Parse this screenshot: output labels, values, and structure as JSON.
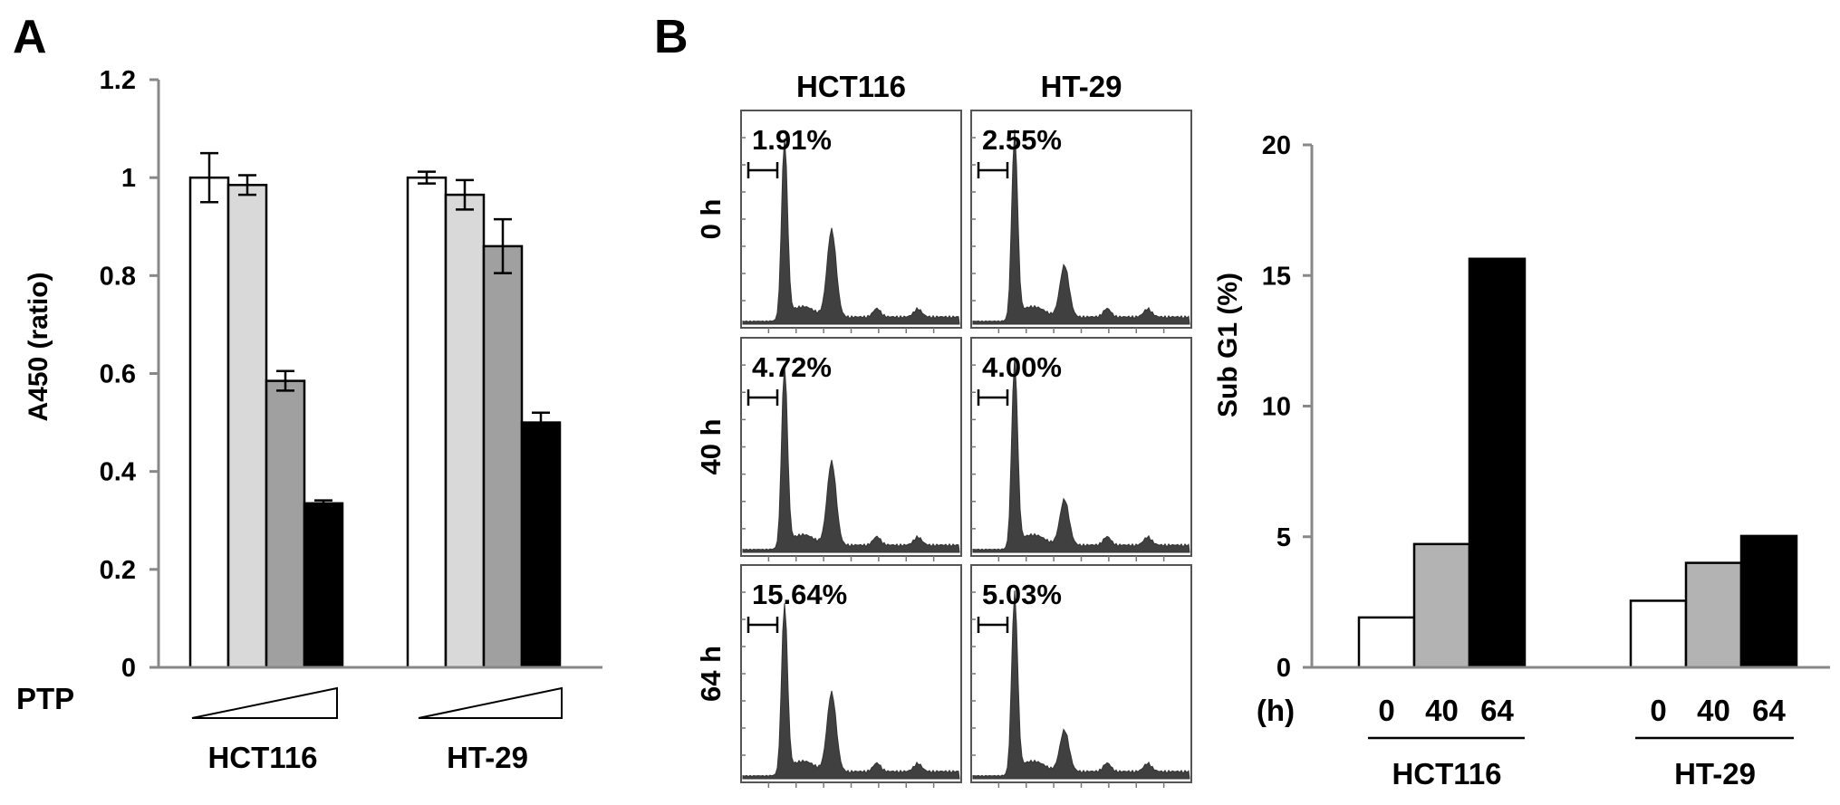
{
  "panel_a": {
    "letter": "A",
    "treatment_label": "PTP",
    "colors": [
      "#ffffff",
      "#d9d9d9",
      "#a0a0a0",
      "#000000"
    ]
  },
  "panel_b": {
    "letter": "B",
    "histogram_columns": [
      "HCT116",
      "HT-29"
    ],
    "histogram_rows": [
      "0 h",
      "40 h",
      "64 h"
    ],
    "histogram_percents": [
      [
        "1.91%",
        "2.55%"
      ],
      [
        "4.72%",
        "4.00%"
      ],
      [
        "15.64%",
        "5.03%"
      ]
    ],
    "histogram_fill": "#404040",
    "time_unit_label": "(h)",
    "colors": [
      "#ffffff",
      "#b3b3b3",
      "#000000"
    ]
  },
  "chart_data": [
    {
      "type": "bar",
      "title": "",
      "xlabel": "PTP",
      "ylabel": "A450  (ratio)",
      "ylim": [
        0,
        1.2
      ],
      "yticks": [
        "0",
        "0.2",
        "0.4",
        "0.6",
        "0.8",
        "1",
        "1.2"
      ],
      "categories": [
        "HCT116",
        "HT-29"
      ],
      "series": [
        {
          "values": [
            1.0,
            1.0
          ],
          "errors": [
            0.05,
            0.012
          ]
        },
        {
          "values": [
            0.985,
            0.965
          ],
          "errors": [
            0.02,
            0.03
          ]
        },
        {
          "values": [
            0.585,
            0.86
          ],
          "errors": [
            0.02,
            0.055
          ]
        },
        {
          "values": [
            0.335,
            0.5
          ],
          "errors": [
            0.006,
            0.02
          ]
        }
      ],
      "grid": false,
      "error_bars": true
    },
    {
      "type": "bar",
      "title": "",
      "xlabel": "(h)",
      "ylabel": "Sub G1 (%)",
      "ylim": [
        0,
        20
      ],
      "yticks": [
        "0",
        "5",
        "10",
        "15",
        "20"
      ],
      "categories": [
        "HCT116",
        "HT-29"
      ],
      "timepoints": [
        "0",
        "40",
        "64"
      ],
      "series": [
        {
          "values": [
            1.91,
            2.55
          ]
        },
        {
          "values": [
            4.72,
            4.0
          ]
        },
        {
          "values": [
            15.64,
            5.03
          ]
        }
      ],
      "grid": false
    }
  ]
}
